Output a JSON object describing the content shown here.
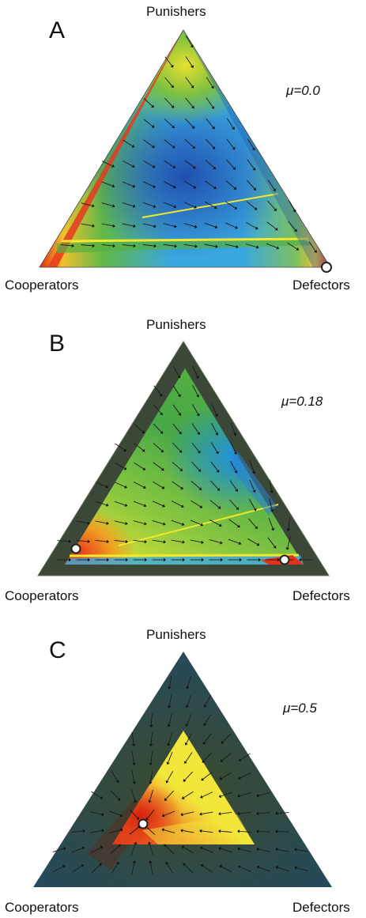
{
  "vertex_labels": {
    "top": "Punishers",
    "left": "Cooperators",
    "right": "Defectors"
  },
  "panels": [
    {
      "label": "A",
      "mu": "μ=0.0",
      "colors": {
        "edge_left": "#e63a1e",
        "corner_left": "#e02a10",
        "corner_top": "#e85020",
        "corner_right": "#e02a10",
        "band": "#e8e030",
        "center": "#2f6fd0",
        "mid": "#3fb0e0",
        "shade": false
      },
      "fixed_points": [
        {
          "target": "right"
        }
      ]
    },
    {
      "label": "B",
      "mu": "μ=0.18",
      "colors": {
        "outer": "#3e4a3a",
        "inner_yellow": "#f0e830",
        "inner_green": "#56b040",
        "inner_blue": "#40a8e0",
        "red": "#e6301c"
      },
      "fixed_points": [
        {
          "target": "left-inner"
        },
        {
          "target": "right-inner"
        }
      ]
    },
    {
      "label": "C",
      "mu": "μ=0.5",
      "colors": {
        "outer": "#2f4a48",
        "inner_yellow": "#f2e63a",
        "inner_red": "#e0381a"
      },
      "fixed_points": [
        {
          "target": "center-left"
        }
      ]
    }
  ]
}
